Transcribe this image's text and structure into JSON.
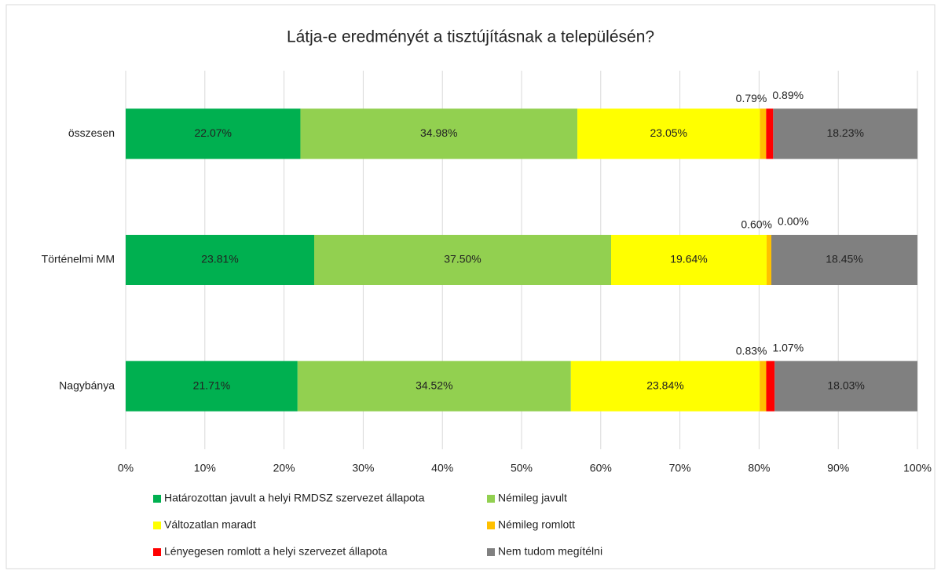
{
  "chart_data": {
    "type": "stacked_barh",
    "title": "Látja-e eredményét a tisztújításnak a településén?",
    "categories": [
      "összesen",
      "Történelmi MM",
      "Nagybánya"
    ],
    "series": [
      {
        "name": "Határozottan javult a helyi RMDSZ szervezet állapota",
        "color": "#00b050",
        "values": [
          22.07,
          23.81,
          21.71
        ],
        "value_labels": [
          "22.07%",
          "23.81%",
          "21.71%"
        ]
      },
      {
        "name": "Némileg javult",
        "color": "#92d050",
        "values": [
          34.98,
          37.5,
          34.52
        ],
        "value_labels": [
          "34.98%",
          "37.50%",
          "34.52%"
        ]
      },
      {
        "name": "Változatlan maradt",
        "color": "#ffff00",
        "values": [
          23.05,
          19.64,
          23.84
        ],
        "value_labels": [
          "23.05%",
          "19.64%",
          "23.84%"
        ]
      },
      {
        "name": "Némileg romlott",
        "color": "#ffc000",
        "values": [
          0.79,
          0.6,
          0.83
        ],
        "value_labels": [
          "0.79%",
          "0.60%",
          "0.83%"
        ]
      },
      {
        "name": "Lényegesen romlott a helyi szervezet állapota",
        "color": "#ff0000",
        "values": [
          0.89,
          0,
          1.07
        ],
        "value_labels": [
          "0.89%",
          "0.00%",
          "1.07%"
        ]
      },
      {
        "name": "Nem tudom megítélni",
        "color": "#808080",
        "values": [
          18.23,
          18.45,
          18.03
        ],
        "value_labels": [
          "18.23%",
          "18.45%",
          "18.03%"
        ]
      }
    ],
    "xlim": [
      0,
      100
    ],
    "xticks": [
      {
        "value": 0,
        "label": "0%"
      },
      {
        "value": 10,
        "label": "10%"
      },
      {
        "value": 20,
        "label": "20%"
      },
      {
        "value": 30,
        "label": "30%"
      },
      {
        "value": 40,
        "label": "40%"
      },
      {
        "value": 50,
        "label": "50%"
      },
      {
        "value": 60,
        "label": "60%"
      },
      {
        "value": 70,
        "label": "70%"
      },
      {
        "value": 80,
        "label": "80%"
      },
      {
        "value": 90,
        "label": "90%"
      },
      {
        "value": 100,
        "label": "100%"
      }
    ],
    "grid": true,
    "legend": "bottom"
  }
}
